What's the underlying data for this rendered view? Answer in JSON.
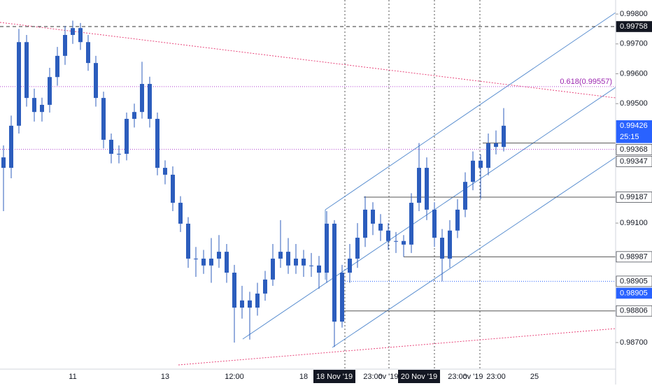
{
  "chart_data": {
    "type": "candlestick",
    "color": "#2c5dbd",
    "categories": [
      null,
      null,
      null,
      null,
      null,
      null,
      null,
      null,
      null,
      "11",
      null,
      null,
      null,
      null,
      null,
      null,
      null,
      null,
      null,
      null,
      null,
      "13",
      null,
      null,
      null,
      null,
      null,
      null,
      null,
      null,
      "12:00",
      null,
      null,
      null,
      null,
      null,
      null,
      null,
      null,
      "18",
      null,
      null,
      null,
      {
        "label": "18 Nov '19",
        "highlight": true
      },
      null,
      null,
      null,
      null,
      "23:00",
      null,
      "ov '19",
      null,
      null,
      null,
      {
        "label": "20 Nov '19",
        "highlight": true
      },
      null,
      null,
      null,
      null,
      "23:00",
      null,
      "ov '19",
      null,
      null,
      "23:00",
      null,
      null,
      null,
      null,
      "25",
      null,
      null,
      null,
      null,
      null,
      null,
      null,
      null,
      null,
      null
    ],
    "open": [
      0.9932,
      0.99285,
      0.99426,
      0.99706,
      0.99519,
      0.99472,
      0.99496,
      0.99589,
      0.9966,
      0.9973,
      0.99753,
      0.99706,
      0.99636,
      0.99519,
      0.99379,
      0.99332,
      0.99332,
      0.99449,
      0.99472,
      0.99566,
      0.99449,
      0.99285,
      0.99262,
      0.99168,
      0.99098,
      0.98981,
      0.98981,
      0.98958,
      0.98981,
      0.99004,
      0.98934,
      0.98817,
      0.98841,
      0.98817,
      0.98864,
      0.98911,
      0.98981,
      0.99004,
      0.98958,
      0.98981,
      0.98958,
      0.98958,
      0.98934,
      0.99098,
      0.9877,
      0.98934,
      0.98981,
      0.99051,
      0.99145,
      0.99098,
      0.99075,
      0.9904,
      0.9904,
      0.99028,
      0.99168,
      0.99285,
      0.99145,
      0.99051,
      0.98981,
      0.99075,
      0.99145,
      0.99238,
      0.99309,
      0.99285,
      0.99367,
      0.99355,
      null,
      null,
      null,
      null,
      null,
      null,
      null,
      null,
      null,
      null,
      null,
      null,
      null,
      null
    ],
    "high": [
      0.9936,
      0.9946,
      0.9975,
      0.9973,
      0.9955,
      0.9952,
      0.9962,
      0.9969,
      0.9976,
      0.99778,
      0.9977,
      0.9973,
      0.9966,
      0.9954,
      0.994,
      0.9936,
      0.9947,
      0.995,
      0.9964,
      0.9959,
      0.9947,
      0.9931,
      0.9929,
      0.9919,
      0.9912,
      0.9902,
      0.9901,
      0.9905,
      0.9906,
      0.9903,
      0.9896,
      0.9889,
      0.9887,
      0.989,
      0.9894,
      0.9903,
      0.9911,
      0.9905,
      0.9903,
      0.9901,
      0.99,
      0.9899,
      0.9914,
      0.9911,
      0.9896,
      0.9903,
      0.991,
      0.9919,
      0.9917,
      0.9913,
      0.991,
      0.9907,
      0.9906,
      0.992,
      0.99368,
      0.9932,
      0.9917,
      0.9908,
      0.9911,
      0.9918,
      0.9927,
      0.9934,
      0.9933,
      0.994,
      0.9941,
      0.99485,
      null,
      null,
      null,
      null,
      null,
      null,
      null,
      null,
      null,
      null,
      null,
      null,
      null,
      null
    ],
    "low": [
      0.9914,
      0.9925,
      0.994,
      0.9949,
      0.9944,
      0.9944,
      0.9947,
      0.9956,
      0.9963,
      0.997,
      0.9968,
      0.9961,
      0.9949,
      0.9935,
      0.993,
      0.993,
      0.9931,
      0.9942,
      0.9945,
      0.9942,
      0.9926,
      0.9923,
      0.9914,
      0.9907,
      0.9895,
      0.9892,
      0.9893,
      0.989,
      0.9895,
      0.989,
      0.987,
      0.9878,
      0.9871,
      0.9879,
      0.9884,
      0.9889,
      0.9895,
      0.9893,
      0.9893,
      0.9892,
      0.9892,
      0.9888,
      0.989,
      0.98685,
      0.9875,
      0.989,
      0.9895,
      0.9902,
      0.9906,
      0.9904,
      0.9901,
      0.99,
      0.98987,
      0.99,
      0.9914,
      0.9911,
      0.9902,
      0.98905,
      0.9895,
      0.9905,
      0.9912,
      0.9921,
      0.9918,
      0.9926,
      0.9933,
      0.9934,
      null,
      null,
      null,
      null,
      null,
      null,
      null,
      null,
      null,
      null,
      null,
      null,
      null,
      null
    ],
    "close": [
      0.99285,
      0.99426,
      0.99706,
      0.99519,
      0.99472,
      0.99496,
      0.99589,
      0.9966,
      0.9973,
      0.99753,
      0.99706,
      0.99636,
      0.99519,
      0.99379,
      0.99332,
      0.99332,
      0.99449,
      0.99472,
      0.99566,
      0.99449,
      0.99285,
      0.99262,
      0.99168,
      0.99098,
      0.98981,
      0.98981,
      0.98958,
      0.98981,
      0.99004,
      0.98934,
      0.98817,
      0.98841,
      0.98817,
      0.98864,
      0.98911,
      0.98981,
      0.99004,
      0.98958,
      0.98981,
      0.98958,
      0.98958,
      0.98934,
      0.99098,
      0.9877,
      0.98934,
      0.98981,
      0.99051,
      0.99145,
      0.99098,
      0.99075,
      0.9904,
      0.9904,
      0.99028,
      0.99168,
      0.99285,
      0.99145,
      0.99051,
      0.98981,
      0.99075,
      0.99145,
      0.99238,
      0.99309,
      0.99285,
      0.99367,
      0.99355,
      0.99426,
      null,
      null,
      null,
      null,
      null,
      null,
      null,
      null,
      null,
      null,
      null,
      null,
      null,
      null
    ],
    "ylim": [
      0.98611,
      0.99847
    ],
    "yticks": [
      {
        "value": 0.998,
        "label": "0.99800"
      },
      {
        "value": 0.997,
        "label": "0.99700"
      },
      {
        "value": 0.996,
        "label": "0.99600"
      },
      {
        "value": 0.995,
        "label": "0.99500"
      },
      {
        "value": 0.991,
        "label": "0.99100"
      },
      {
        "value": 0.987,
        "label": "0.98700"
      }
    ],
    "price_labels": [
      {
        "value": 0.99758,
        "style": "dark"
      },
      {
        "value": 0.99426,
        "style": "blue"
      },
      {
        "value": 0.99368,
        "style": "plain"
      },
      {
        "value": 0.99347,
        "style": "plain"
      },
      {
        "value": 0.99187,
        "style": "plain"
      },
      {
        "value": 0.98987,
        "style": "plain"
      },
      {
        "value": 0.98905,
        "style": "plain"
      },
      {
        "value": 0.98905,
        "style": "blue"
      },
      {
        "value": 0.98806,
        "style": "plain"
      }
    ],
    "countdown": "25:15",
    "fib_level": {
      "value": 0.99557,
      "label": "0.618(0.99557)"
    }
  }
}
